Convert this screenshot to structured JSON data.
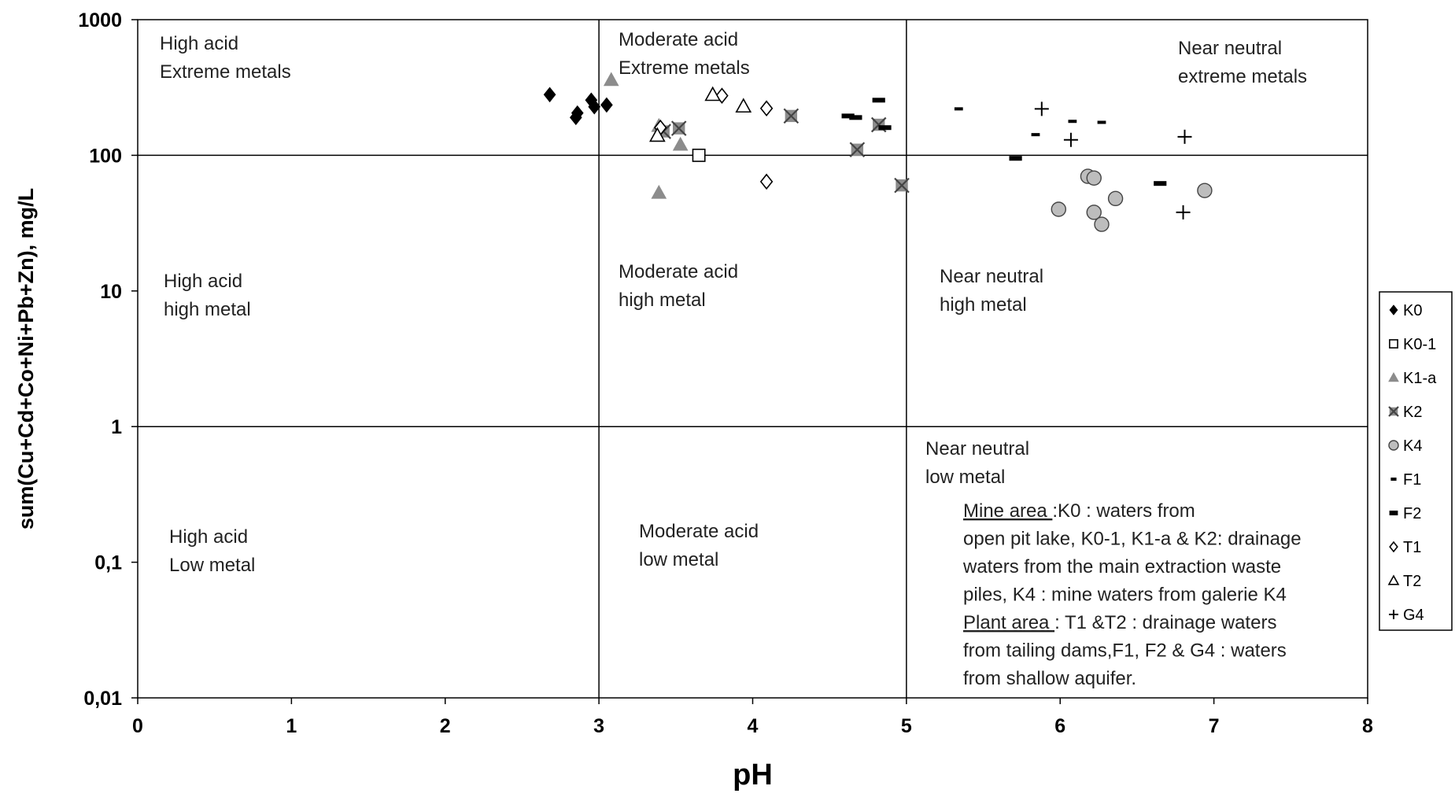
{
  "chart_data": {
    "type": "scatter",
    "xlabel": "pH",
    "ylabel": "sum(Cu+Cd+Co+Ni+Pb+Zn), mg/L",
    "xlim": [
      0,
      8
    ],
    "ylim": [
      0.01,
      1000
    ],
    "y_scale": "log",
    "x_ticks": [
      "0",
      "1",
      "2",
      "3",
      "4",
      "5",
      "6",
      "7",
      "8"
    ],
    "y_ticks": [
      "0,01",
      "0,1",
      "1",
      "10",
      "100",
      "1000"
    ],
    "grid": false,
    "divider_lines": {
      "x": [
        3,
        5
      ],
      "y": [
        1,
        100
      ]
    },
    "legend_position": "right",
    "regions": [
      {
        "lines": [
          "High acid",
          "Extreme metals"
        ]
      },
      {
        "lines": [
          "Moderate acid",
          "Extreme metals"
        ]
      },
      {
        "lines": [
          "Near neutral",
          "extreme metals"
        ]
      },
      {
        "lines": [
          "High acid",
          "high metal"
        ]
      },
      {
        "lines": [
          "Moderate acid",
          "high metal"
        ]
      },
      {
        "lines": [
          "Near neutral",
          "high metal"
        ]
      },
      {
        "lines": [
          "High acid",
          "Low metal"
        ]
      },
      {
        "lines": [
          "Moderate acid",
          "low metal"
        ]
      },
      {
        "lines": [
          "Near neutral",
          "low metal"
        ]
      }
    ],
    "annotation": [
      {
        "u": "Mine area ",
        "t": ":K0 : waters from"
      },
      {
        "u": "",
        "t": "open pit lake, K0-1, K1-a & K2: drainage"
      },
      {
        "u": "",
        "t": "waters from the main extraction waste"
      },
      {
        "u": "",
        "t": "piles, K4 : mine waters from galerie K4"
      },
      {
        "u": "Plant area ",
        "t": ": T1 &T2 : drainage waters"
      },
      {
        "u": "",
        "t": "from tailing dams,F1, F2 & G4 : waters"
      },
      {
        "u": "",
        "t": "from shallow aquifer."
      }
    ],
    "series": [
      {
        "name": "K0",
        "marker": "diamond-filled",
        "color": "#000000",
        "points": [
          [
            2.68,
            280
          ],
          [
            2.85,
            190
          ],
          [
            2.86,
            205
          ],
          [
            2.95,
            255
          ],
          [
            2.97,
            228
          ],
          [
            3.05,
            235
          ]
        ]
      },
      {
        "name": "K0-1",
        "marker": "square-open",
        "color": "#000000",
        "points": [
          [
            3.65,
            100
          ]
        ]
      },
      {
        "name": "K1-a",
        "marker": "triangle-filled",
        "color": "#8c8c8c",
        "points": [
          [
            3.08,
            360
          ],
          [
            3.39,
            165
          ],
          [
            3.53,
            120
          ],
          [
            3.39,
            53
          ]
        ]
      },
      {
        "name": "K2",
        "marker": "xsquare",
        "color": "#8c8c8c",
        "points": [
          [
            3.42,
            150
          ],
          [
            3.52,
            158
          ],
          [
            4.25,
            195
          ],
          [
            4.68,
            110
          ],
          [
            4.82,
            168
          ],
          [
            4.97,
            60
          ]
        ]
      },
      {
        "name": "K4",
        "marker": "circle-filled",
        "color": "#bdbdbd",
        "points": [
          [
            5.99,
            40
          ],
          [
            6.18,
            70
          ],
          [
            6.22,
            68
          ],
          [
            6.22,
            38
          ],
          [
            6.27,
            31
          ],
          [
            6.36,
            48
          ],
          [
            6.94,
            55
          ]
        ]
      },
      {
        "name": "F1",
        "marker": "dash-thin",
        "color": "#000000",
        "points": [
          [
            5.34,
            220
          ],
          [
            5.84,
            142
          ],
          [
            6.08,
            178
          ],
          [
            6.27,
            175
          ]
        ]
      },
      {
        "name": "F2",
        "marker": "dash-thick",
        "color": "#000000",
        "points": [
          [
            4.62,
            195
          ],
          [
            4.67,
            190
          ],
          [
            4.82,
            255
          ],
          [
            4.86,
            160
          ],
          [
            5.71,
            95
          ],
          [
            6.65,
            62
          ]
        ]
      },
      {
        "name": "T1",
        "marker": "diamond-open",
        "color": "#000000",
        "points": [
          [
            3.4,
            160
          ],
          [
            3.8,
            275
          ],
          [
            4.09,
            222
          ],
          [
            4.09,
            64
          ]
        ]
      },
      {
        "name": "T2",
        "marker": "triangle-open",
        "color": "#000000",
        "points": [
          [
            3.38,
            140
          ],
          [
            3.74,
            280
          ],
          [
            3.94,
            230
          ]
        ]
      },
      {
        "name": "G4",
        "marker": "plus",
        "color": "#000000",
        "points": [
          [
            5.88,
            220
          ],
          [
            6.07,
            130
          ],
          [
            6.81,
            137
          ],
          [
            6.8,
            38
          ]
        ]
      }
    ]
  }
}
